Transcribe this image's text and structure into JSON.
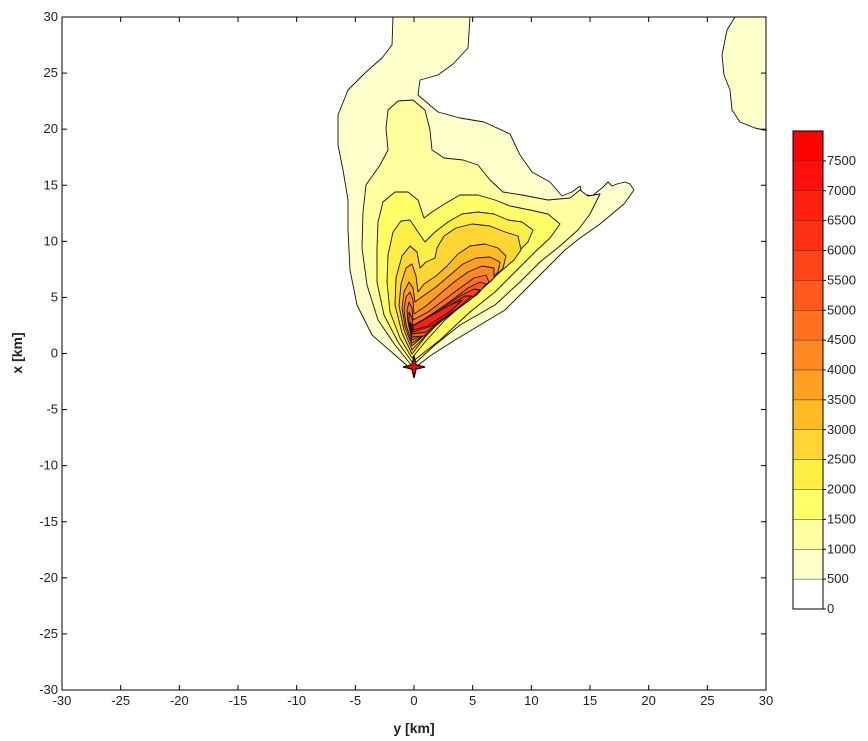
{
  "chart_data": {
    "type": "heatmap",
    "subtype": "filled-contour",
    "xlabel": "y [km]",
    "ylabel": "x [km]",
    "xlim": [
      -30,
      30
    ],
    "ylim": [
      -30,
      30
    ],
    "x_ticks": [
      -30,
      -25,
      -20,
      -15,
      -10,
      -5,
      0,
      5,
      10,
      15,
      20,
      25,
      30
    ],
    "y_ticks": [
      -30,
      -25,
      -20,
      -15,
      -10,
      -5,
      0,
      5,
      10,
      15,
      20,
      25,
      30
    ],
    "grid": false,
    "colorbar": {
      "position": "right",
      "levels": [
        0,
        500,
        1000,
        1500,
        2000,
        2500,
        3000,
        3500,
        4000,
        4500,
        5000,
        5500,
        6000,
        6500,
        7000,
        7500
      ],
      "colors": [
        "#ffffff",
        "#ffffcc",
        "#ffffa0",
        "#ffff66",
        "#ffee44",
        "#ffd633",
        "#ffbb22",
        "#ffa022",
        "#ff8822",
        "#ff7020",
        "#ff5a1c",
        "#ff4418",
        "#ff3014",
        "#ff2010",
        "#ff100c",
        "#ff0000"
      ]
    },
    "marker": {
      "icon": "star-marker-icon",
      "x": 0,
      "y": -1.2,
      "color": "#ff0000"
    }
  }
}
